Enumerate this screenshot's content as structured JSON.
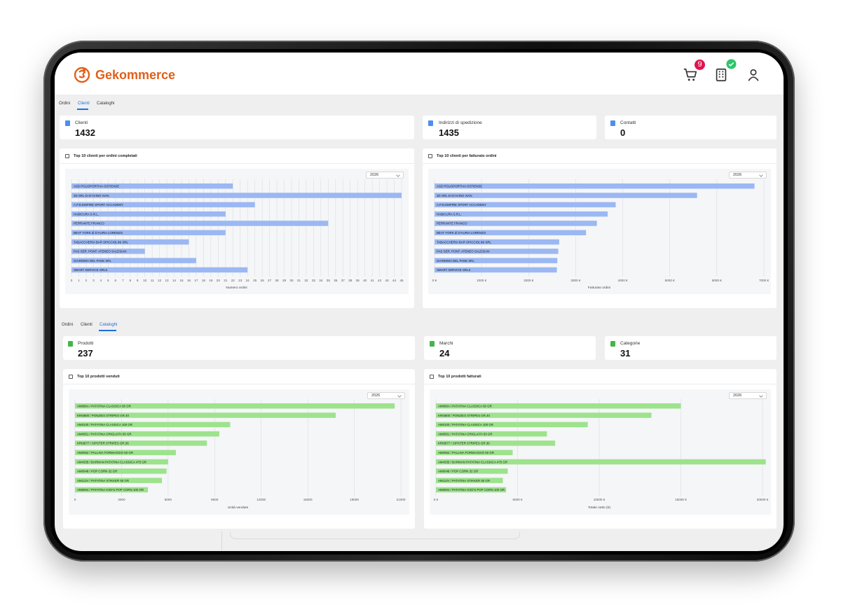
{
  "app": {
    "brand": "Gekommerce",
    "cart_count": "9",
    "colors": {
      "brand": "#e0601a",
      "badge": "#e1144f",
      "check": "#2fc46a",
      "active_tab": "#1e6fd6",
      "blue_bar": "#9bb8f3",
      "green_bar": "#9de38c"
    }
  },
  "clienti_section": {
    "tabs": [
      "Ordini",
      "Clienti",
      "Cataloghi"
    ],
    "active_tab": "Clienti",
    "stats": [
      {
        "label": "Clienti",
        "value": "1432"
      },
      {
        "label": "Indirizzi di spedizione",
        "value": "1435"
      },
      {
        "label": "Contatti",
        "value": "0"
      }
    ]
  },
  "cataloghi_section": {
    "tabs": [
      "Ordini",
      "Clienti",
      "Cataloghi"
    ],
    "active_tab": "Cataloghi",
    "stats": [
      {
        "label": "Prodotti",
        "value": "237"
      },
      {
        "label": "Marchi",
        "value": "24"
      },
      {
        "label": "Categorie",
        "value": "31"
      }
    ]
  },
  "chart_data": [
    {
      "type": "bar",
      "orientation": "horizontal",
      "title": "Top 10 clienti per ordini completati",
      "year": "2026",
      "xlabel": "Numero ordini",
      "xlim": [
        0,
        45
      ],
      "ticks": [
        "0",
        "1",
        "2",
        "3",
        "4",
        "5",
        "6",
        "7",
        "8",
        "9",
        "10",
        "11",
        "12",
        "13",
        "14",
        "15",
        "16",
        "17",
        "18",
        "19",
        "20",
        "21",
        "22",
        "23",
        "24",
        "25",
        "26",
        "27",
        "28",
        "29",
        "30",
        "31",
        "32",
        "33",
        "34",
        "35",
        "36",
        "37",
        "38",
        "39",
        "40",
        "41",
        "42",
        "43",
        "44",
        "45"
      ],
      "categories": [
        "ASD POLISPORTIVA OSTIENSE",
        "3D SRL DI D'AVINO IVAN",
        "A.P.D.EMPIRE SPORT ACCADEMY",
        "HABICURA S.R.L.",
        "PERRANTE FRANCO",
        "BEAT YORK di D'AURIA LORENZO",
        "TABACCHERIA BAR SPICCIOLINI SRL",
        "PAS SER. PONT. ATENEO SALESIAN",
        "GIARDINO DEL PANE SRL",
        "SMART SERVICE SRLS"
      ],
      "values": [
        22,
        45,
        25,
        21,
        35,
        21,
        16,
        10,
        17,
        24
      ],
      "color": "#9bb8f3"
    },
    {
      "type": "bar",
      "orientation": "horizontal",
      "title": "Top 10 clienti per fatturato ordini",
      "year": "2026",
      "xlabel": "Fatturato ordini",
      "xlim": [
        0,
        7000
      ],
      "ticks": [
        "0 €",
        "1000 €",
        "2000 €",
        "3000 €",
        "4000 €",
        "5000 €",
        "6000 €",
        "7000 €"
      ],
      "categories": [
        "ASD POLISPORTIVA OSTIENSE",
        "3D SRL DI D'AVINO IVAN",
        "A.P.D.EMPIRE SPORT ACCADEMY",
        "HABICURA S.R.L.",
        "PERRANTE FRANCO",
        "BEAT YORK di D'AURIA LORENZO",
        "TABACCHERIA BAR SPICCIOLINI SRL",
        "PAS SER. PONT. ATENEO SALESIAN",
        "GIARDINO DEL PANE SRL",
        "SMART SERVICE SRLS"
      ],
      "values": [
        6800,
        5580,
        3850,
        3680,
        3450,
        3220,
        2650,
        2630,
        2610,
        2600
      ],
      "color": "#9bb8f3"
    },
    {
      "type": "bar",
      "orientation": "horizontal",
      "title": "Top 10 prodotti venduti",
      "year": "2026",
      "xlabel": "Unità vendute",
      "xlim": [
        0,
        21000
      ],
      "ticks": [
        "0",
        "3000",
        "6000",
        "9000",
        "12000",
        "15000",
        "18000",
        "21000"
      ],
      "categories": [
        "AM090A / PATATINA CLASSICA 50 GR",
        "KRI5800 / PONZIES STRIPES GR.40",
        "AM0100 / PATATINA CLASSICA 100 GR",
        "AM0051 / PATATINA GRIGLIATA 50 GR",
        "KRI9677 / CIPSTER STRIPES GR.36",
        "AM0052 / PALLINA FORMAGGIO 50 GR",
        "AM4335 / BARMAN PATATINA CLASSICA 475 GR",
        "AM0048 / POP CORN 32 GR",
        "AM113V / PATATINA STIKKER 50 GR",
        "AM5004 / PATATINA GIGI'S POP CORN 100 GR"
      ],
      "values": [
        20600,
        16800,
        10000,
        9300,
        8500,
        6500,
        6000,
        5900,
        5600,
        4700
      ],
      "color": "#9de38c"
    },
    {
      "type": "bar",
      "orientation": "horizontal",
      "title": "Top 10 prodotti fatturati",
      "year": "2026",
      "xlabel": "Totale netto (€)",
      "xlim": [
        0,
        20000
      ],
      "ticks": [
        "0 €",
        "5000 €",
        "10000 €",
        "15000 €",
        "20000 €"
      ],
      "categories": [
        "AM090A / PATATINA CLASSICA 50 GR",
        "KRI5800 / PONZIES STRIPES GR.40",
        "AM0100 / PATATINA CLASSICA 100 GR",
        "AM0051 / PATATINA GRIGLIATA 50 GR",
        "KRI9677 / CIPSTER STRIPES GR.36",
        "AM0052 / PALLINA FORMAGGIO 50 GR",
        "AM4335 / BARMAN PATATINA CLASSICA 475 GR",
        "AM0048 / POP CORN 32 GR",
        "AM113V / PATATINA STIKKER 50 GR",
        "AM5004 / PATATINA GIGI'S POP CORN 100 GR"
      ],
      "values": [
        15000,
        13200,
        9300,
        6800,
        7300,
        4700,
        20200,
        4400,
        4100,
        4300
      ],
      "color": "#9de38c"
    }
  ]
}
